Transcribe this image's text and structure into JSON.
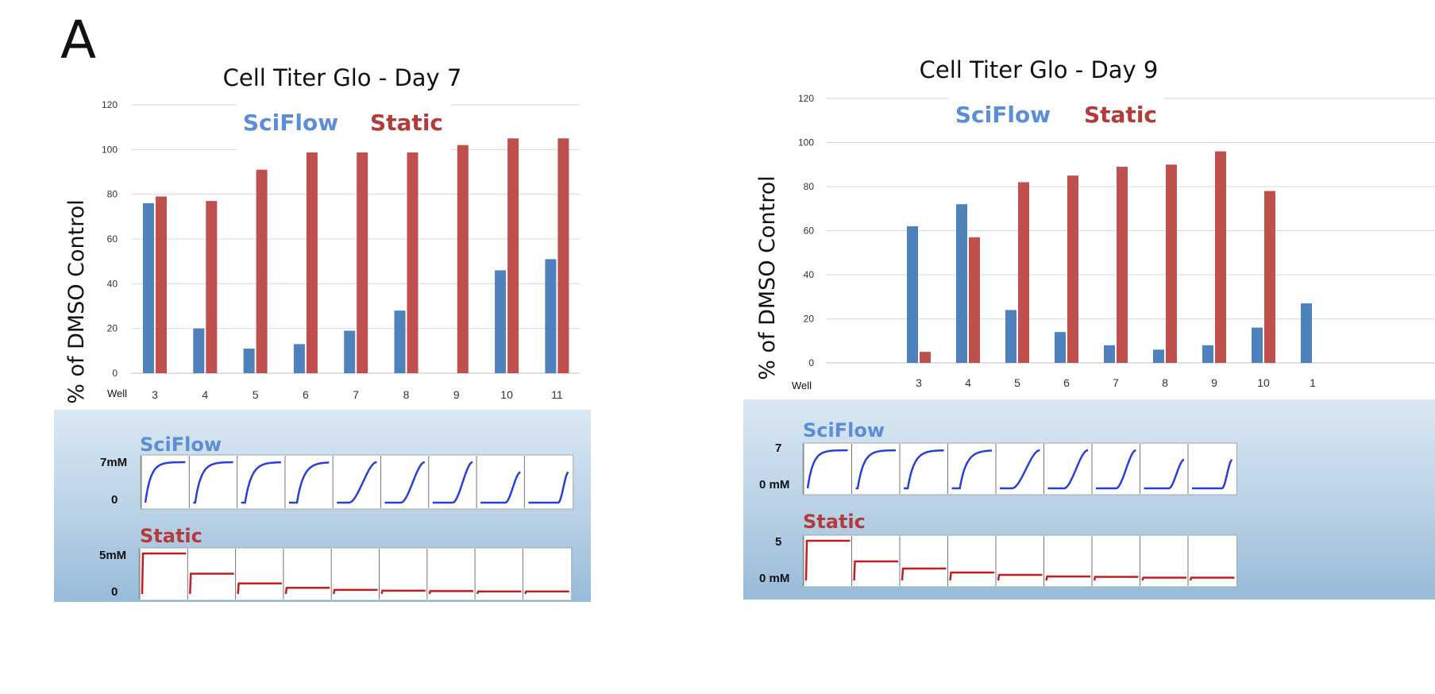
{
  "panel_label": "A",
  "colors": {
    "sciflow": "#4f81bd",
    "static": "#c0504d",
    "sciflow_curve": "#2a3fd6",
    "static_curve": "#c01f1f",
    "sciflow_label": "#5b8ed6",
    "static_label": "#b33b3b"
  },
  "chart_data": [
    {
      "type": "bar",
      "title": "Cell Titer Glo - Day 7",
      "ylabel": "% of DMSO Control",
      "x_axis_name": "Well",
      "categories": [
        "3",
        "4",
        "5",
        "6",
        "7",
        "8",
        "9",
        "10",
        "11"
      ],
      "ylim": [
        0,
        120
      ],
      "yticks": [
        "0",
        "20",
        "40",
        "60",
        "80",
        "100",
        "120"
      ],
      "grid": true,
      "legend_placement": "top-center",
      "series": [
        {
          "name": "SciFlow",
          "values": [
            76,
            20,
            11,
            13,
            19,
            28,
            0,
            46,
            51
          ]
        },
        {
          "name": "Static",
          "values": [
            79,
            77,
            91,
            102,
            100,
            100,
            102,
            105,
            105
          ]
        }
      ]
    },
    {
      "type": "bar",
      "title": "Cell Titer Glo - Day 9",
      "ylabel": "% of DMSO Control",
      "x_axis_name": "Well",
      "categories": [
        "3",
        "4",
        "5",
        "6",
        "7",
        "8",
        "9",
        "10",
        "1"
      ],
      "ylim": [
        0,
        120
      ],
      "yticks": [
        "0",
        "20",
        "40",
        "60",
        "80",
        "100",
        "120"
      ],
      "grid": true,
      "legend_placement": "top-center",
      "series": [
        {
          "name": "SciFlow",
          "values": [
            62,
            72,
            24,
            14,
            8,
            6,
            8,
            16,
            27
          ]
        },
        {
          "name": "Static",
          "values": [
            5,
            57,
            82,
            85,
            89,
            90,
            96,
            78,
            null
          ]
        }
      ]
    }
  ],
  "profiles": [
    {
      "sciflow": {
        "label": "SciFlow",
        "top_label": "7mM",
        "bottom_label": "0",
        "start_fraction": [
          0.0,
          0.05,
          0.1,
          0.2,
          0.3,
          0.4,
          0.5,
          0.62,
          0.75
        ],
        "steepness": [
          9,
          8,
          7,
          6,
          6,
          5,
          5,
          5,
          5
        ]
      },
      "static": {
        "label": "Static",
        "top_label": "5mM",
        "bottom_label": "0",
        "plateau_levels": [
          1.0,
          0.5,
          0.26,
          0.15,
          0.1,
          0.08,
          0.07,
          0.06,
          0.06
        ]
      }
    },
    {
      "sciflow": {
        "label": "SciFlow",
        "top_label": "7",
        "bottom_label": "0 mM",
        "start_fraction": [
          0.0,
          0.05,
          0.1,
          0.2,
          0.3,
          0.4,
          0.5,
          0.62,
          0.75
        ],
        "steepness": [
          9,
          8,
          7,
          6,
          6,
          5,
          5,
          5,
          5
        ]
      },
      "static": {
        "label": "Static",
        "top_label": "5",
        "bottom_label": "0 mM",
        "plateau_levels": [
          1.0,
          0.48,
          0.3,
          0.2,
          0.14,
          0.1,
          0.09,
          0.07,
          0.07
        ]
      }
    }
  ]
}
